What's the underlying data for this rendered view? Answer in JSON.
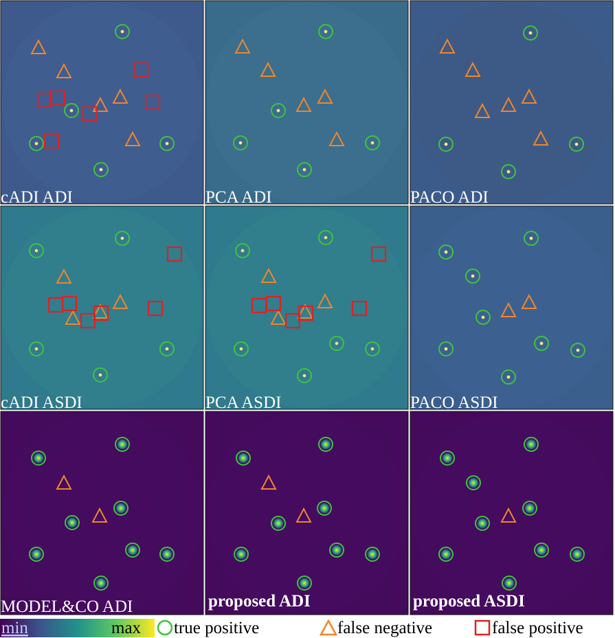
{
  "panels": [
    {
      "label": "cADI ADI"
    },
    {
      "label": "PCA ADI"
    },
    {
      "label": "PACO ADI"
    },
    {
      "label": "cADI ASDI"
    },
    {
      "label": "PCA ASDI"
    },
    {
      "label": "PACO ASDI"
    },
    {
      "label": "MODEL&CO ADI"
    },
    {
      "label": "proposed ADI"
    },
    {
      "label": "proposed ASDI"
    }
  ],
  "legend": {
    "min": "min",
    "max": "max",
    "true_positive": "true positive",
    "false_negative": "false negative",
    "false_positive": "false positive"
  }
}
